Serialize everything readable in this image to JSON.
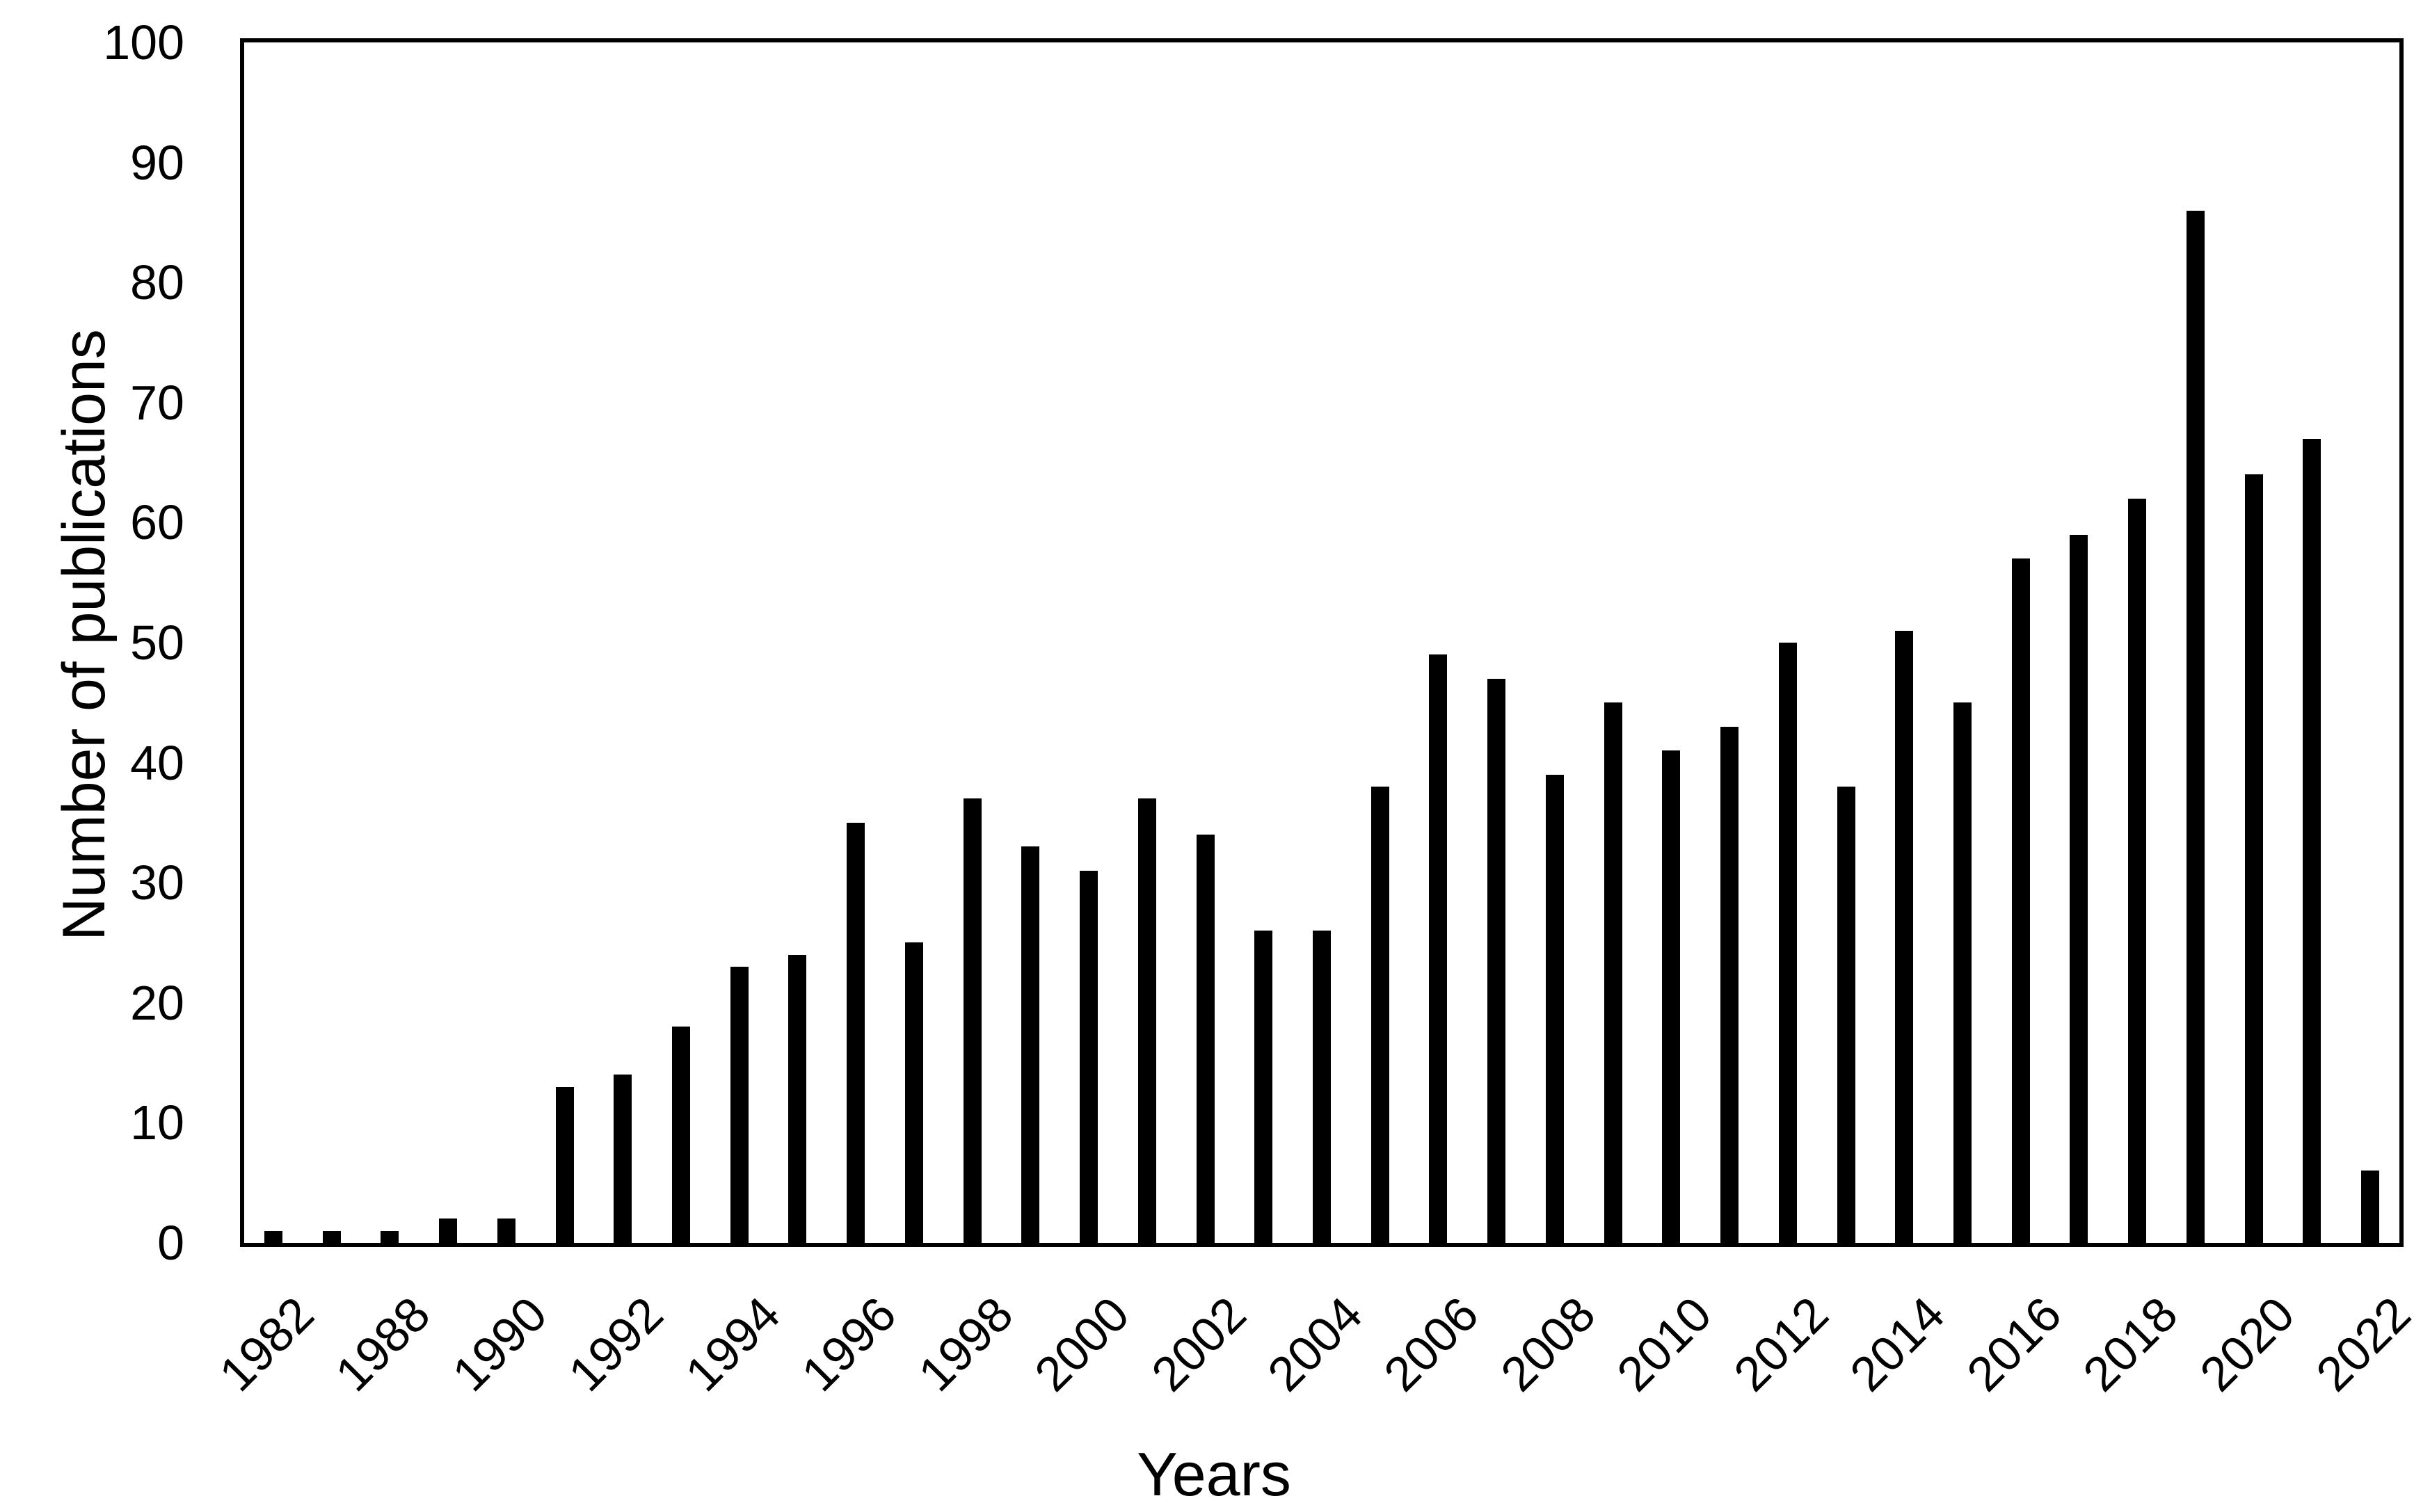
{
  "chart_data": {
    "type": "bar",
    "title": "",
    "xlabel": "Years",
    "ylabel": "Number of publications",
    "ylim": [
      0,
      100
    ],
    "y_ticks": [
      0,
      10,
      20,
      30,
      40,
      50,
      60,
      70,
      80,
      90,
      100
    ],
    "x_tick_labels": [
      "1982",
      "1988",
      "1990",
      "1992",
      "1994",
      "1996",
      "1998",
      "2000",
      "2002",
      "2004",
      "2006",
      "2008",
      "2010",
      "2012",
      "2014",
      "2016",
      "2018",
      "2020",
      "2022"
    ],
    "label_every_n_bars": 2,
    "values": [
      1,
      1,
      1,
      2,
      2,
      13,
      14,
      18,
      23,
      24,
      35,
      25,
      37,
      33,
      31,
      37,
      34,
      26,
      26,
      38,
      49,
      47,
      39,
      45,
      41,
      43,
      50,
      38,
      51,
      45,
      57,
      59,
      62,
      86,
      64,
      67,
      6
    ],
    "bar_color": "#000000",
    "axis_color": "#000000",
    "background": "#ffffff",
    "grid": false,
    "legend": null
  }
}
